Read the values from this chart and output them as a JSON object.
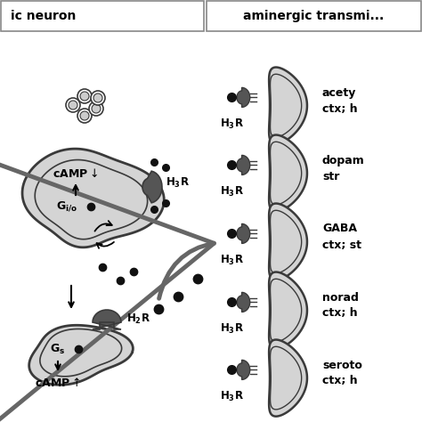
{
  "bg_color": "#ffffff",
  "left_panel_label": "ic neuron",
  "right_panel_label": "aminergic transmi...",
  "neurotransmitters": [
    {
      "label1": "acety",
      "label2": "ctx; h"
    },
    {
      "label1": "dopam",
      "label2": "str"
    },
    {
      "label1": "GABA",
      "label2": "ctx; st"
    },
    {
      "label1": "norad",
      "label2": "ctx; h"
    },
    {
      "label1": "seroto",
      "label2": "ctx; h"
    }
  ],
  "outline_color": "#3a3a3a",
  "fill_light": "#d4d4d4",
  "fill_dark": "#555555",
  "dot_color": "#111111"
}
